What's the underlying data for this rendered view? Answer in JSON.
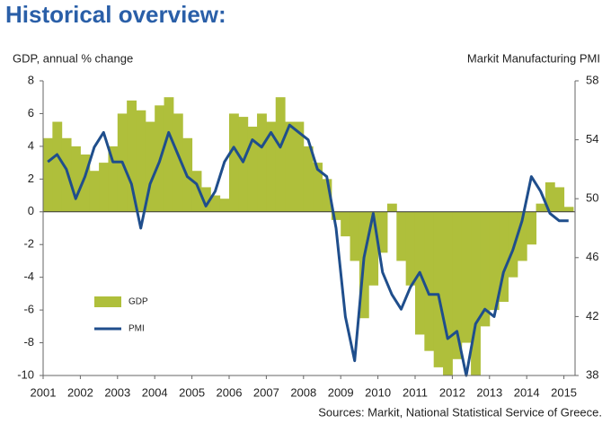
{
  "chart_data": {
    "type": "combo",
    "title": "Historical overview:",
    "y_label": "GDP, annual % change",
    "y2_label": "Markit Manufacturing PMI",
    "source": "Sources: Markit, National Statistical Service of Greece.",
    "x": [
      2001,
      2001.25,
      2001.5,
      2001.75,
      2002,
      2002.25,
      2002.5,
      2002.75,
      2003,
      2003.25,
      2003.5,
      2003.75,
      2004,
      2004.25,
      2004.5,
      2004.75,
      2005,
      2005.25,
      2005.5,
      2005.75,
      2006,
      2006.25,
      2006.5,
      2006.75,
      2007,
      2007.25,
      2007.5,
      2007.75,
      2008,
      2008.25,
      2008.5,
      2008.75,
      2009,
      2009.25,
      2009.5,
      2009.75,
      2010,
      2010.25,
      2010.5,
      2010.75,
      2011,
      2011.25,
      2011.5,
      2011.75,
      2012,
      2012.25,
      2012.5,
      2012.75,
      2013,
      2013.25,
      2013.5,
      2013.75,
      2014,
      2014.25,
      2014.5,
      2014.75,
      2015
    ],
    "series": [
      {
        "name": "GDP",
        "type": "bar",
        "axis": "y",
        "color": "#afbf3b",
        "values": [
          4.5,
          5.5,
          4.5,
          4.0,
          3.5,
          2.5,
          3.0,
          4.0,
          6.0,
          6.8,
          6.2,
          5.5,
          6.5,
          7.0,
          6.0,
          4.5,
          2.5,
          1.5,
          1.0,
          0.8,
          6.0,
          5.8,
          5.2,
          6.0,
          5.5,
          7.0,
          5.5,
          5.5,
          4.0,
          3.0,
          2.0,
          -0.5,
          -1.5,
          -3.0,
          -6.5,
          -4.5,
          -2.5,
          0.5,
          -3.0,
          -4.5,
          -7.5,
          -8.5,
          -9.5,
          -10,
          -9,
          -8,
          -10,
          -7,
          -6,
          -5.5,
          -4,
          -3,
          -2,
          0.5,
          1.8,
          1.5,
          0.3
        ]
      },
      {
        "name": "PMI",
        "type": "line",
        "axis": "y2",
        "color": "#1f4e8c",
        "values": [
          52.5,
          53,
          52,
          50,
          51.5,
          53.5,
          54.5,
          52.5,
          52.5,
          51,
          48,
          51,
          52.5,
          54.5,
          53,
          51.5,
          51,
          49.5,
          50.5,
          52.5,
          53.5,
          52.5,
          54,
          53.5,
          54.5,
          53.5,
          55,
          54.5,
          54,
          52,
          51.5,
          48,
          42,
          39,
          46,
          49,
          45,
          43.5,
          42.5,
          44,
          45,
          43.5,
          43.5,
          40.5,
          41,
          38,
          41.5,
          42.5,
          42,
          45,
          46.5,
          48.5,
          51.5,
          50.5,
          49,
          48.5,
          48.5
        ]
      }
    ],
    "xlim": [
      2001,
      2015.3
    ],
    "xticks": [
      2001,
      2002,
      2003,
      2004,
      2005,
      2006,
      2007,
      2008,
      2009,
      2010,
      2011,
      2012,
      2013,
      2014,
      2015
    ],
    "ylim": [
      -10,
      8
    ],
    "yticks": [
      -10,
      -8,
      -6,
      -4,
      -2,
      0,
      2,
      4,
      6,
      8
    ],
    "y2lim": [
      38,
      58
    ],
    "y2ticks": [
      38,
      42,
      46,
      50,
      54,
      58
    ],
    "legend": "lower left"
  }
}
